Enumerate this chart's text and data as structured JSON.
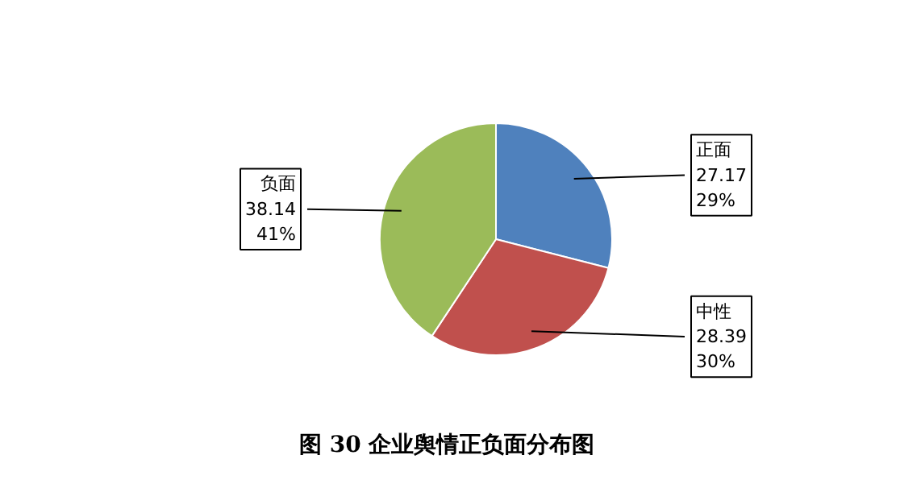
{
  "chart_data": {
    "type": "pie",
    "title": "图 30  企业舆情正负面分布图",
    "categories": [
      "正面",
      "中性",
      "负面"
    ],
    "values": [
      27.17,
      28.39,
      38.14
    ],
    "colors": [
      "#4f81bd",
      "#c0504d",
      "#9bbb59"
    ],
    "value_labels": [
      "27.17\n29%",
      "28.39\n30%",
      "38.14\n41%"
    ]
  }
}
